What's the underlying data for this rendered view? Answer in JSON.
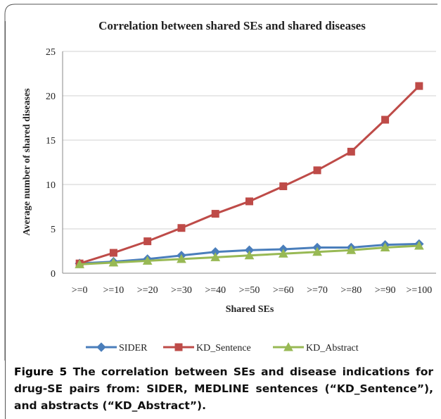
{
  "chart_data": {
    "type": "line",
    "title": "Correlation between shared SEs and shared diseases",
    "x_label": "Shared SEs",
    "y_label": "Average number of shared diseases",
    "categories": [
      ">=0",
      ">=10",
      ">=20",
      ">=30",
      ">=40",
      ">=50",
      ">=60",
      ">=70",
      ">=80",
      ">=90",
      ">=100"
    ],
    "series": [
      {
        "name": "SIDER",
        "color": "#4a7ebb",
        "marker": "diamond",
        "values": [
          1.1,
          1.3,
          1.6,
          2.0,
          2.4,
          2.6,
          2.7,
          2.9,
          2.9,
          3.2,
          3.3
        ]
      },
      {
        "name": "KD_Sentence",
        "color": "#be4b48",
        "marker": "square",
        "values": [
          1.1,
          2.3,
          3.6,
          5.1,
          6.7,
          8.1,
          9.8,
          11.6,
          13.7,
          17.3,
          21.1
        ]
      },
      {
        "name": "KD_Abstract",
        "color": "#98b954",
        "marker": "triangle",
        "values": [
          1.0,
          1.2,
          1.4,
          1.6,
          1.8,
          2.0,
          2.2,
          2.4,
          2.6,
          2.9,
          3.1
        ]
      }
    ],
    "ylim": [
      0,
      25
    ],
    "yticks": [
      0,
      5,
      10,
      15,
      20,
      25
    ],
    "grid": true,
    "legend": "bottom"
  },
  "caption": {
    "label": "Figure 5",
    "text": "The correlation between SEs and disease indications for drug-SE pairs from: SIDER, MEDLINE sentences (“KD_Sentence”), and abstracts (“KD_Abstract”)."
  }
}
